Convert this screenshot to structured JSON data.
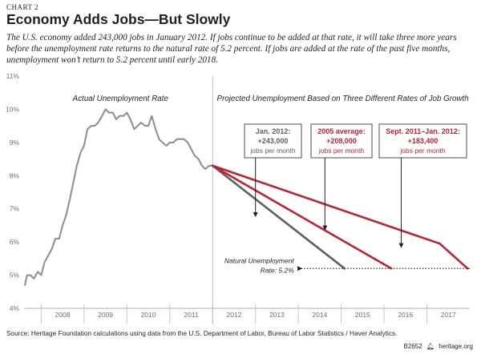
{
  "header": {
    "kicker": "CHART 2",
    "title": "Economy Adds Jobs—But Slowly",
    "subtitle": "The U.S. economy added 243,000 jobs in January 2012. If jobs continue to be added at that rate, it will take three more years before the unemployment rate returns to the natural rate of 5.2 percent.  If jobs are added at the rate of the past five months, unemployment won’t return to 5.2 percent until early 2018."
  },
  "footer": {
    "source": "Source: Heritage Foundation calculations using data from the U.S. Department of Labor, Bureau of Labor Statistics / Haver Analytics.",
    "code": "B2652",
    "site": "heritage.org"
  },
  "colors": {
    "actual": "#8a9396",
    "gray_proj": "#566168",
    "red_proj": "#c0212f",
    "text": "#231f20",
    "axis": "#b0b0b0"
  },
  "chart_data": {
    "type": "line",
    "xlabel": "",
    "ylabel": "",
    "ylim": [
      4,
      11
    ],
    "xlim": [
      2007.6,
      2018.0
    ],
    "y_ticks": [
      "4%",
      "5%",
      "6%",
      "7%",
      "8%",
      "9%",
      "10%",
      "11%"
    ],
    "y_tick_values": [
      4,
      5,
      6,
      7,
      8,
      9,
      10,
      11
    ],
    "x_ticks": [
      "2008",
      "2009",
      "2010",
      "2011",
      "2012",
      "2013",
      "2014",
      "2015",
      "2016",
      "2017"
    ],
    "section_labels": {
      "actual": "Actual Unemployment Rate",
      "projected": "Projected Unemployment Based on Three Different Rates of Job Growth"
    },
    "natural_rate": {
      "value": 5.2,
      "label_line1": "Natural Unemployment",
      "label_line2": "Rate: 5.2%"
    },
    "series": [
      {
        "name": "Actual Unemployment Rate",
        "color_key": "actual",
        "x": [
          2007.62,
          2007.67,
          2007.75,
          2007.83,
          2007.92,
          2008.0,
          2008.08,
          2008.17,
          2008.25,
          2008.33,
          2008.42,
          2008.5,
          2008.58,
          2008.67,
          2008.75,
          2008.83,
          2008.92,
          2009.0,
          2009.08,
          2009.17,
          2009.25,
          2009.33,
          2009.42,
          2009.5,
          2009.58,
          2009.67,
          2009.75,
          2009.83,
          2009.92,
          2010.0,
          2010.08,
          2010.17,
          2010.25,
          2010.33,
          2010.42,
          2010.5,
          2010.58,
          2010.67,
          2010.75,
          2010.83,
          2010.92,
          2011.0,
          2011.08,
          2011.17,
          2011.25,
          2011.33,
          2011.42,
          2011.5,
          2011.58,
          2011.67,
          2011.75,
          2011.83,
          2011.92,
          2012.0
        ],
        "values": [
          4.7,
          5.0,
          5.0,
          4.9,
          5.1,
          5.0,
          5.4,
          5.6,
          5.8,
          6.1,
          6.1,
          6.5,
          6.8,
          7.3,
          7.8,
          8.3,
          8.7,
          8.9,
          9.4,
          9.5,
          9.5,
          9.6,
          9.8,
          10.0,
          9.9,
          9.9,
          9.7,
          9.8,
          9.8,
          9.9,
          9.7,
          9.4,
          9.5,
          9.6,
          9.5,
          9.5,
          9.8,
          9.4,
          9.1,
          9.0,
          8.9,
          9.0,
          9.0,
          9.1,
          9.1,
          9.1,
          9.0,
          8.8,
          8.6,
          8.5,
          8.3,
          8.2,
          8.3,
          8.3
        ]
      },
      {
        "name": "Jan. 2012: +243,000 jobs per month",
        "color_key": "gray_proj",
        "x": [
          2012.0,
          2015.08
        ],
        "values": [
          8.3,
          5.2
        ]
      },
      {
        "name": "2005 average: +208,000 jobs per month",
        "color_key": "red_proj",
        "x": [
          2012.0,
          2016.17
        ],
        "values": [
          8.3,
          5.2
        ]
      },
      {
        "name": "Sept. 2011–Jan. 2012: +183,400 jobs per month",
        "color_key": "red_proj",
        "x": [
          2012.0,
          2017.3,
          2017.95
        ],
        "values": [
          8.3,
          5.95,
          5.2
        ]
      }
    ],
    "callouts": [
      {
        "series_index": 1,
        "line1": "Jan. 2012:",
        "line2": "+243,000",
        "line3": "jobs per month",
        "color_key": "gray_proj",
        "arrow_to": [
          2013.0,
          6.75
        ]
      },
      {
        "series_index": 2,
        "line1": "2005 average:",
        "line2": "+208,000",
        "line3": "jobs per month",
        "color_key": "red_proj",
        "arrow_to": [
          2014.62,
          6.35
        ]
      },
      {
        "series_index": 3,
        "line1": "Sept. 2011–Jan. 2012:",
        "line2": "+183,400",
        "line3": "jobs per month",
        "color_key": "red_proj",
        "arrow_to": [
          2016.4,
          5.82
        ]
      }
    ]
  }
}
